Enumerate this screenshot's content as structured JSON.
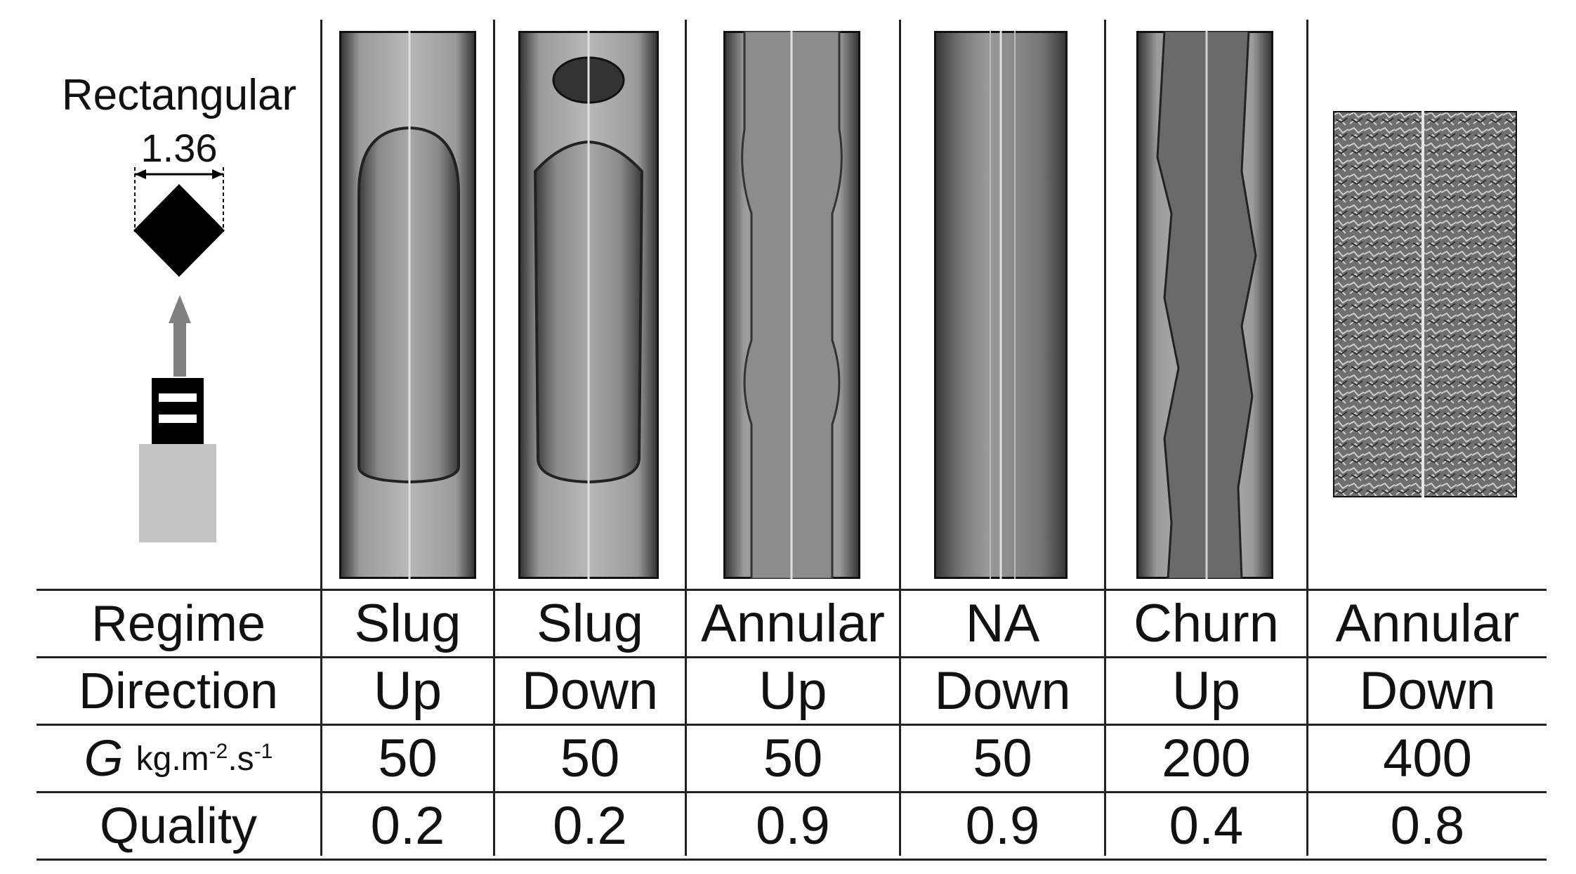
{
  "schematic": {
    "title": "Rectangular",
    "dimension": "1.36",
    "colors": {
      "shape": "#000000",
      "arrow": "#808080",
      "block": "#c4c4c4"
    }
  },
  "table": {
    "row_labels": {
      "regime": "Regime",
      "direction": "Direction",
      "g_symbol": "G",
      "g_unit_base": "kg.m",
      "g_unit_exp1": "-2",
      "g_unit_mid": ".s",
      "g_unit_exp2": "-1",
      "quality": "Quality"
    },
    "columns": [
      {
        "regime": "Slug",
        "direction": "Up",
        "g": "50",
        "quality": "0.2"
      },
      {
        "regime": "Slug",
        "direction": "Down",
        "g": "50",
        "quality": "0.2"
      },
      {
        "regime": "Annular",
        "direction": "Up",
        "g": "50",
        "quality": "0.9"
      },
      {
        "regime": "NA",
        "direction": "Down",
        "g": "50",
        "quality": "0.9"
      },
      {
        "regime": "Churn",
        "direction": "Up",
        "g": "200",
        "quality": "0.4"
      },
      {
        "regime": "Annular",
        "direction": "Down",
        "g": "400",
        "quality": "0.8"
      }
    ]
  }
}
